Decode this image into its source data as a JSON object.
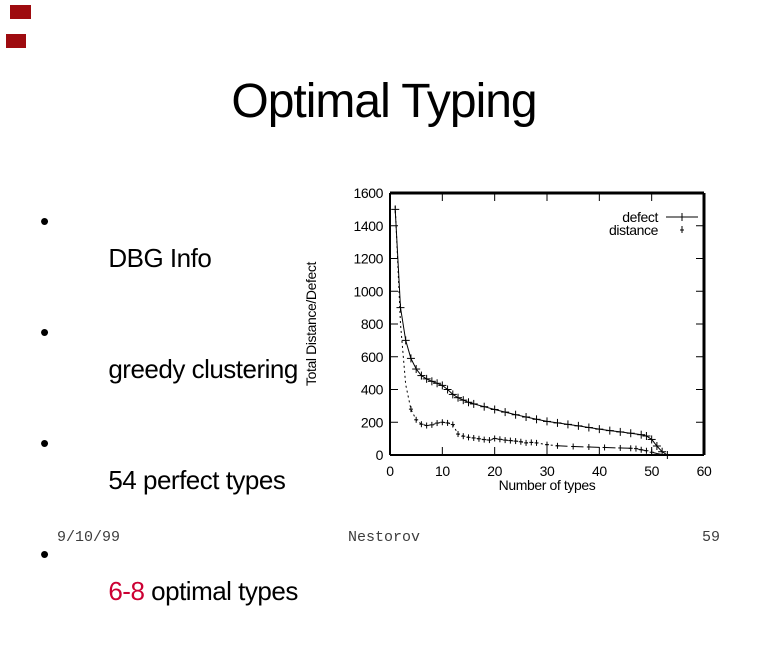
{
  "bullet_char": "•",
  "slide": {
    "title": "Optimal Typing"
  },
  "bullets": [
    {
      "text": "DBG Info"
    },
    {
      "text": "greedy clustering"
    },
    {
      "text": "54 perfect types"
    },
    {
      "highlight": "6-8",
      "text": " optimal types"
    }
  ],
  "footer": {
    "date": "9/10/99",
    "author": "Nestorov",
    "page": "59"
  },
  "colors": {
    "accent_mark": "#9e0b0f",
    "highlight": "#cc0033",
    "text": "#000000",
    "footer_text": "#3d3d3d",
    "chart_ink": "#000000"
  },
  "chart_data": {
    "type": "line",
    "title": "",
    "xlabel": "Number of types",
    "ylabel": "Total Distance/Defect",
    "xlim": [
      0,
      60
    ],
    "ylim": [
      0,
      1600
    ],
    "xticks": [
      0,
      10,
      20,
      30,
      40,
      50,
      60
    ],
    "yticks": [
      0,
      200,
      400,
      600,
      800,
      1000,
      1200,
      1400,
      1600
    ],
    "grid": false,
    "legend_position": "top-right",
    "series": [
      {
        "name": "defect",
        "style": "solid",
        "marker": "plus",
        "points": [
          [
            1,
            1500
          ],
          [
            2,
            900
          ],
          [
            3,
            700
          ],
          [
            4,
            590
          ],
          [
            5,
            525
          ],
          [
            6,
            485
          ],
          [
            7,
            465
          ],
          [
            8,
            450
          ],
          [
            9,
            438
          ],
          [
            10,
            425
          ],
          [
            11,
            400
          ],
          [
            12,
            370
          ],
          [
            13,
            350
          ],
          [
            14,
            335
          ],
          [
            15,
            322
          ],
          [
            16,
            312
          ],
          [
            18,
            295
          ],
          [
            20,
            278
          ],
          [
            22,
            262
          ],
          [
            24,
            246
          ],
          [
            26,
            232
          ],
          [
            28,
            218
          ],
          [
            30,
            205
          ],
          [
            32,
            196
          ],
          [
            34,
            187
          ],
          [
            36,
            178
          ],
          [
            38,
            168
          ],
          [
            40,
            158
          ],
          [
            42,
            149
          ],
          [
            44,
            141
          ],
          [
            46,
            133
          ],
          [
            48,
            124
          ],
          [
            49,
            116
          ],
          [
            50,
            95
          ],
          [
            51,
            55
          ],
          [
            52,
            20
          ],
          [
            53,
            0
          ]
        ]
      },
      {
        "name": "distance",
        "style": "dashed",
        "marker": "tick",
        "points": [
          [
            1,
            1520
          ],
          [
            2,
            800
          ],
          [
            3,
            430
          ],
          [
            4,
            280
          ],
          [
            5,
            215
          ],
          [
            6,
            188
          ],
          [
            7,
            180
          ],
          [
            8,
            184
          ],
          [
            9,
            195
          ],
          [
            10,
            200
          ],
          [
            11,
            196
          ],
          [
            12,
            186
          ],
          [
            13,
            128
          ],
          [
            14,
            115
          ],
          [
            15,
            108
          ],
          [
            16,
            104
          ],
          [
            17,
            99
          ],
          [
            18,
            94
          ],
          [
            19,
            91
          ],
          [
            20,
            101
          ],
          [
            21,
            96
          ],
          [
            22,
            91
          ],
          [
            23,
            88
          ],
          [
            24,
            85
          ],
          [
            25,
            81
          ],
          [
            26,
            74
          ],
          [
            27,
            77
          ],
          [
            28,
            74
          ],
          [
            30,
            63
          ],
          [
            32,
            56
          ],
          [
            35,
            52
          ],
          [
            38,
            49
          ],
          [
            41,
            46
          ],
          [
            44,
            43
          ],
          [
            46,
            41
          ],
          [
            47,
            39
          ],
          [
            48,
            32
          ],
          [
            49,
            26
          ],
          [
            50,
            17
          ],
          [
            51,
            9
          ],
          [
            52,
            3
          ],
          [
            53,
            0
          ]
        ]
      }
    ]
  }
}
